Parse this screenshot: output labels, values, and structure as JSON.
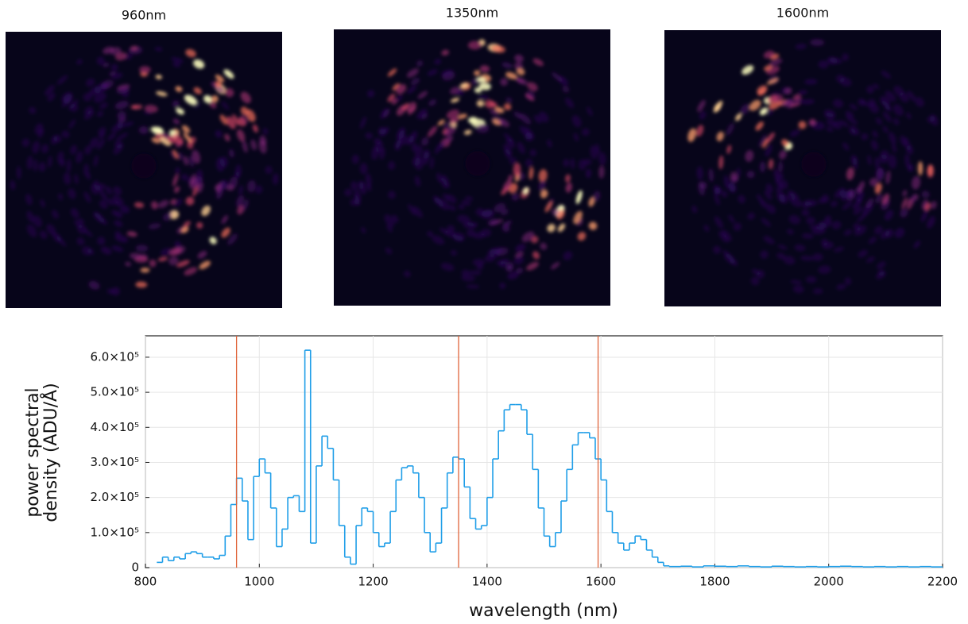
{
  "images": [
    {
      "title": "960nm"
    },
    {
      "title": "1350nm"
    },
    {
      "title": "1600nm"
    }
  ],
  "chart_data": {
    "type": "step",
    "xlabel": "wavelength (nm)",
    "ylabel": [
      "power spectral",
      "density (ADU/Å)"
    ],
    "xlim": [
      800,
      2200
    ],
    "xticks": [
      800,
      1000,
      1200,
      1400,
      1600,
      1800,
      2000,
      2200
    ],
    "ylim": [
      0,
      661000
    ],
    "yticks": [
      0,
      {
        "value": 100000,
        "label": "1.0×10⁵"
      },
      {
        "value": 200000,
        "label": "2.0×10⁵"
      },
      {
        "value": 300000,
        "label": "3.0×10⁵"
      },
      {
        "value": 400000,
        "label": "4.0×10⁵"
      },
      {
        "value": 500000,
        "label": "5.0×10⁵"
      },
      {
        "value": 600000,
        "label": "6.0×10⁵"
      }
    ],
    "grid": true,
    "vlines": [
      960,
      1350,
      1595
    ],
    "vline_color": "#e0643b",
    "series": [
      {
        "color": "#1f9ee8",
        "x": [
          820,
          830,
          840,
          850,
          860,
          870,
          880,
          890,
          900,
          910,
          920,
          930,
          940,
          950,
          960,
          970,
          980,
          990,
          1000,
          1010,
          1020,
          1030,
          1040,
          1050,
          1060,
          1070,
          1080,
          1090,
          1100,
          1110,
          1120,
          1130,
          1140,
          1150,
          1160,
          1170,
          1180,
          1190,
          1200,
          1210,
          1220,
          1230,
          1240,
          1250,
          1260,
          1270,
          1280,
          1290,
          1300,
          1310,
          1320,
          1330,
          1340,
          1350,
          1360,
          1370,
          1380,
          1390,
          1400,
          1410,
          1420,
          1430,
          1440,
          1450,
          1460,
          1470,
          1480,
          1490,
          1500,
          1510,
          1520,
          1530,
          1540,
          1550,
          1560,
          1570,
          1580,
          1590,
          1600,
          1610,
          1620,
          1630,
          1640,
          1650,
          1660,
          1670,
          1680,
          1690,
          1700,
          1710,
          1720,
          1740,
          1760,
          1780,
          1800,
          1820,
          1840,
          1860,
          1880,
          1900,
          1920,
          1940,
          1960,
          1980,
          2000,
          2020,
          2040,
          2060,
          2080,
          2100,
          2120,
          2140,
          2160,
          2180
        ],
        "values": [
          15000,
          30000,
          20000,
          30000,
          25000,
          40000,
          45000,
          40000,
          30000,
          30000,
          25000,
          35000,
          90000,
          180000,
          255000,
          190000,
          80000,
          260000,
          310000,
          270000,
          170000,
          60000,
          110000,
          200000,
          205000,
          160000,
          620000,
          70000,
          290000,
          375000,
          340000,
          250000,
          120000,
          30000,
          10000,
          120000,
          170000,
          160000,
          100000,
          60000,
          70000,
          160000,
          250000,
          285000,
          290000,
          270000,
          200000,
          100000,
          45000,
          70000,
          170000,
          270000,
          315000,
          310000,
          230000,
          140000,
          110000,
          120000,
          200000,
          310000,
          390000,
          450000,
          465000,
          465000,
          450000,
          380000,
          280000,
          170000,
          90000,
          60000,
          100000,
          190000,
          280000,
          350000,
          385000,
          385000,
          370000,
          310000,
          250000,
          160000,
          100000,
          70000,
          50000,
          70000,
          90000,
          80000,
          50000,
          30000,
          15000,
          5000,
          3000,
          4000,
          2000,
          5000,
          4000,
          3000,
          5000,
          3000,
          2000,
          4000,
          3000,
          2000,
          3000,
          2000,
          3000,
          4000,
          3000,
          2000,
          3000,
          2000,
          3000,
          2000,
          3000,
          2000
        ]
      }
    ]
  }
}
